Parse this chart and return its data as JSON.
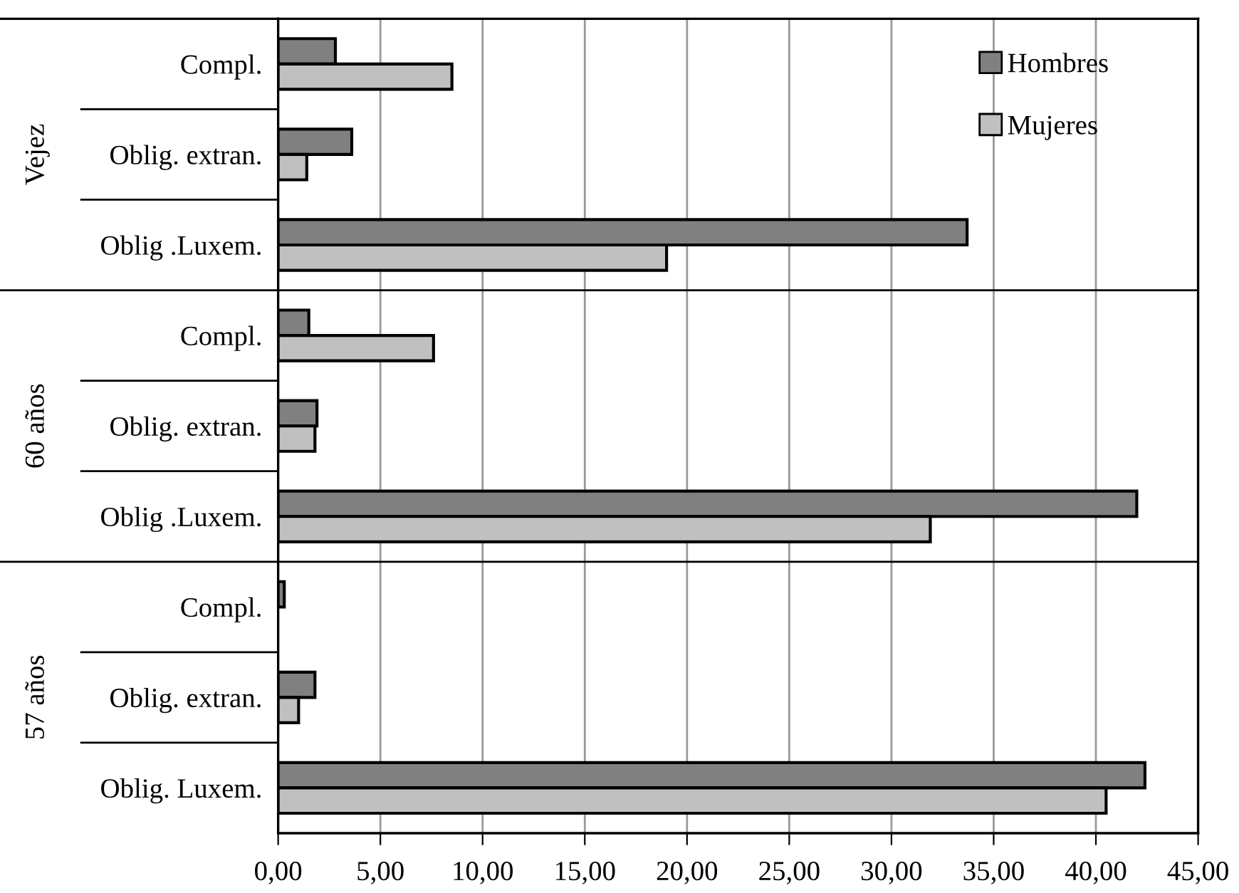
{
  "chart_data": {
    "type": "bar",
    "orientation": "horizontal",
    "categories": [
      "Compl.",
      "Oblig. extran.",
      "Oblig .Luxem.",
      "Compl.",
      "Oblig. extran.",
      "Oblig .Luxem.",
      "Compl.",
      "Oblig. extran.",
      "Oblig. Luxem."
    ],
    "series": [
      {
        "name": "Hombres",
        "color": "#808080",
        "values": [
          2.8,
          3.6,
          33.7,
          1.5,
          1.9,
          42.0,
          0.3,
          1.8,
          42.4
        ]
      },
      {
        "name": "Mujeres",
        "color": "#c0c0c0",
        "values": [
          8.5,
          1.4,
          19.0,
          7.6,
          1.8,
          31.9,
          null,
          1.0,
          40.5
        ]
      }
    ],
    "annotations": [
      "Vejez",
      "60 años",
      "57 años"
    ],
    "xlim": [
      0,
      45
    ],
    "xticks": [
      {
        "value": 0,
        "label": "0,00"
      },
      {
        "value": 5,
        "label": "5,00"
      },
      {
        "value": 10,
        "label": "10,00"
      },
      {
        "value": 15,
        "label": "15,00"
      },
      {
        "value": 20,
        "label": "20,00"
      },
      {
        "value": 25,
        "label": "25,00"
      },
      {
        "value": 30,
        "label": "30,00"
      },
      {
        "value": 35,
        "label": "35,00"
      },
      {
        "value": 40,
        "label": "40,00"
      },
      {
        "value": 45,
        "label": "45,00"
      }
    ],
    "grid": "x",
    "legend": "top right"
  }
}
